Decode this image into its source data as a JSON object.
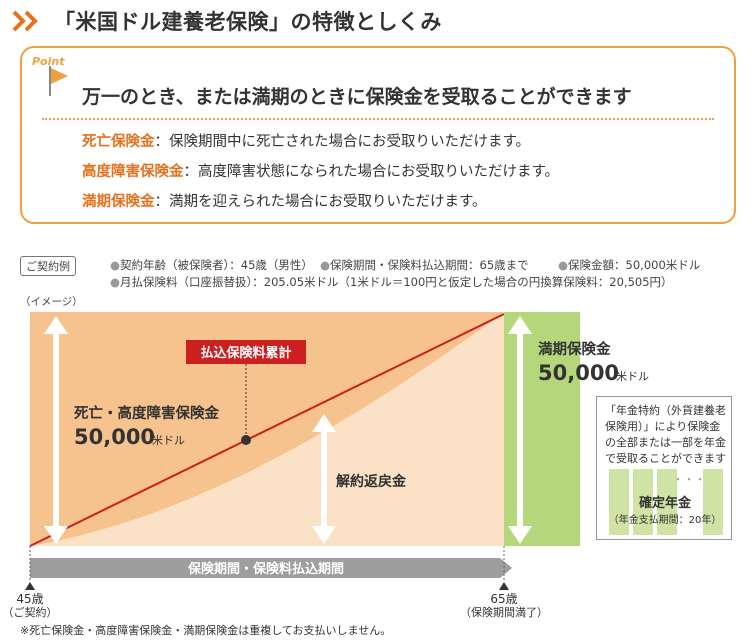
{
  "header": {
    "title": "「米国ドル建養老保険」の特徴としくみ"
  },
  "point": {
    "badge": "Point",
    "lead": "万一のとき、または満期のときに保険金を受取ることができます",
    "rows": [
      {
        "term": "死亡保険金",
        "desc": "：保険期間中に死亡された場合にお受取りいただけます。"
      },
      {
        "term": "高度障害保険金",
        "desc": "：高度障害状態になられた場合にお受取りいただけます。"
      },
      {
        "term": "満期保険金",
        "desc": "：満期を迎えられた場合にお受取りいただけます。"
      }
    ]
  },
  "contract": {
    "tag": "ご契約例",
    "conditions": [
      "契約年齢（被保険者）：45歳（男性）",
      "保険期間・保険料払込期間：65歳まで",
      "保険金額：50,000米ドル",
      "月払保険料（口座振替扱）：205.05米ドル（1米ドル＝100円と仮定した場合の円換算保険料：20,505円）"
    ],
    "image_note": "（イメージ）"
  },
  "diagram": {
    "premium_label": "払込保険料累計",
    "death_label": "死亡・高度障害保険金",
    "death_amount": "50,000",
    "death_unit": "米ドル",
    "surrender_label": "解約返戻金",
    "maturity_label": "満期保険金",
    "maturity_amount": "50,000",
    "maturity_unit": "米ドル",
    "period_label": "保険期間・保険料払込期間",
    "start_age": "45歳",
    "start_note": "（ご契約）",
    "end_age": "65歳",
    "end_note": "（保険期間満了）"
  },
  "annuity": {
    "note": "「年金特約（外貨建養老保険用）」により保険金の全部または一部を年金で受取ることができます",
    "dots": "・・・",
    "label": "確定年金",
    "sub": "（年金支払期間：20年）"
  },
  "footnote": "※死亡保険金・高度障害保険金・満期保険金は重複してお支払いしません。",
  "colors": {
    "orange": "#e8711e",
    "outline": "#f0a040",
    "death_area": "#f6c28e",
    "surrender_area": "#fbe1c5",
    "maturity_green": "#b5d67a",
    "premium_line": "#cc1f1f",
    "period_bar": "#9e9e9e"
  }
}
